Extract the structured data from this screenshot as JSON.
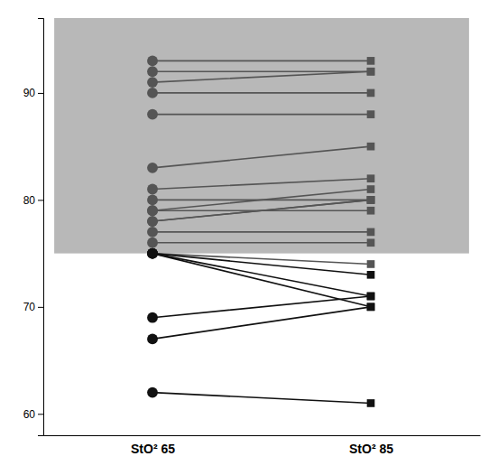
{
  "chart_data": {
    "type": "slope",
    "categories": [
      "StO² 65",
      "StO² 85"
    ],
    "series": [
      {
        "color": "#555555",
        "values": [
          75,
          74
        ]
      },
      {
        "color": "#111111",
        "values": [
          75,
          71
        ]
      },
      {
        "color": "#111111",
        "values": [
          75,
          70
        ]
      },
      {
        "color": "#111111",
        "values": [
          75,
          73
        ]
      },
      {
        "color": "#555555",
        "values": [
          76,
          76
        ]
      },
      {
        "color": "#555555",
        "values": [
          77,
          77
        ]
      },
      {
        "color": "#555555",
        "values": [
          78,
          80
        ]
      },
      {
        "color": "#555555",
        "values": [
          78,
          80
        ]
      },
      {
        "color": "#555555",
        "values": [
          79,
          79
        ]
      },
      {
        "color": "#555555",
        "values": [
          79,
          81
        ]
      },
      {
        "color": "#555555",
        "values": [
          80,
          80
        ]
      },
      {
        "color": "#555555",
        "values": [
          81,
          82
        ]
      },
      {
        "color": "#555555",
        "values": [
          83,
          85
        ]
      },
      {
        "color": "#555555",
        "values": [
          88,
          88
        ]
      },
      {
        "color": "#555555",
        "values": [
          90,
          90
        ]
      },
      {
        "color": "#555555",
        "values": [
          91,
          92
        ]
      },
      {
        "color": "#555555",
        "values": [
          92,
          92
        ]
      },
      {
        "color": "#555555",
        "values": [
          93,
          93
        ]
      },
      {
        "color": "#111111",
        "values": [
          69,
          71
        ]
      },
      {
        "color": "#111111",
        "values": [
          67,
          70
        ]
      },
      {
        "color": "#111111",
        "values": [
          62,
          61
        ]
      }
    ],
    "band": {
      "ylim": [
        75,
        97
      ],
      "color": "#b8b8b8"
    },
    "ylim": [
      58,
      97
    ],
    "yticks": [
      60,
      70,
      80,
      90
    ],
    "grid": false
  }
}
